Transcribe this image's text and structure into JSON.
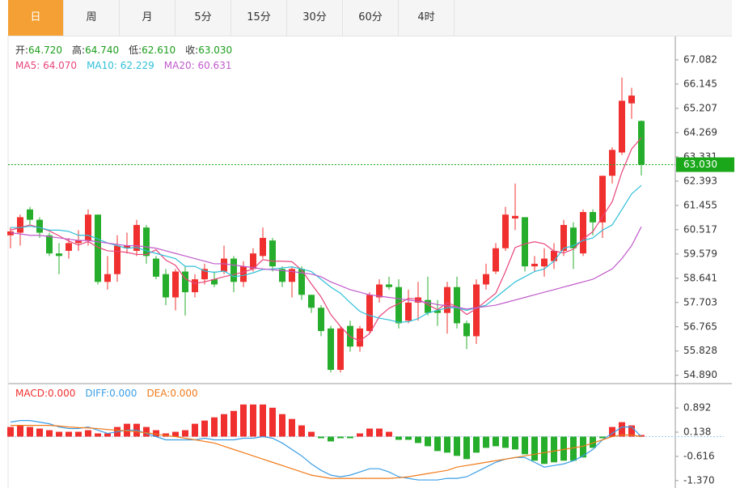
{
  "tabs": [
    "日",
    "周",
    "月",
    "5分",
    "15分",
    "30分",
    "60分",
    "4时"
  ],
  "active_tab": 0,
  "chart_data": [
    {
      "type": "candlestick",
      "ohlc_legend": [
        {
          "label": "开:",
          "value": "64.720"
        },
        {
          "label": "高:",
          "value": "64.740"
        },
        {
          "label": "低:",
          "value": "62.610"
        },
        {
          "label": "收:",
          "value": "63.030"
        }
      ],
      "legend_value_color": "#1a9d1a",
      "up_color": "#f0302f",
      "down_color": "#27ad2c",
      "open": [
        60.3,
        60.4,
        61.3,
        60.9,
        60.3,
        59.6,
        59.7,
        60.0,
        60.1,
        61.1,
        58.5,
        58.8,
        59.8,
        59.7,
        60.6,
        59.4,
        58.8,
        57.9,
        58.9,
        58.1,
        58.6,
        58.6,
        58.9,
        59.4,
        58.5,
        59.0,
        59.5,
        60.1,
        59.0,
        58.5,
        59.0,
        58.0,
        57.5,
        56.7,
        55.1,
        56.8,
        56.0,
        56.6,
        57.9,
        58.4,
        58.3,
        57.0,
        57.7,
        57.8,
        57.4,
        57.3,
        58.3,
        56.9,
        56.4,
        58.4,
        58.9,
        59.8,
        60.95,
        61.0,
        59.1,
        59.1,
        59.3,
        59.7,
        60.6,
        59.6,
        61.2,
        60.8,
        62.6,
        63.5,
        65.4,
        64.72
      ],
      "high": [
        60.6,
        61.1,
        61.4,
        61.0,
        60.4,
        60.0,
        60.2,
        60.5,
        61.3,
        61.1,
        59.5,
        60.3,
        60.4,
        60.9,
        60.7,
        59.5,
        59.0,
        59.0,
        59.1,
        58.8,
        59.2,
        58.9,
        59.9,
        59.5,
        59.3,
        59.8,
        60.6,
        60.2,
        59.1,
        59.1,
        59.1,
        58.0,
        57.6,
        56.8,
        56.8,
        57.0,
        56.8,
        58.1,
        58.6,
        58.7,
        58.6,
        58.2,
        58.5,
        58.7,
        57.8,
        58.5,
        58.7,
        57.0,
        58.6,
        59.2,
        60.0,
        61.4,
        62.3,
        61.0,
        59.5,
        59.8,
        60.0,
        60.9,
        60.8,
        61.3,
        61.3,
        62.6,
        63.7,
        66.4,
        66.0,
        64.74
      ],
      "low": [
        59.8,
        59.9,
        60.7,
        60.2,
        59.5,
        58.8,
        59.4,
        59.7,
        59.9,
        58.4,
        58.2,
        58.5,
        59.6,
        59.5,
        59.2,
        58.6,
        57.6,
        57.4,
        57.2,
        57.9,
        58.4,
        58.3,
        58.8,
        58.1,
        58.3,
        58.9,
        59.4,
        58.9,
        58.3,
        57.9,
        57.8,
        57.3,
        56.4,
        55.0,
        55.0,
        55.8,
        55.8,
        56.5,
        57.7,
        58.2,
        56.7,
        56.9,
        57.0,
        57.2,
        56.8,
        56.5,
        56.7,
        55.9,
        56.1,
        58.2,
        58.8,
        59.7,
        60.5,
        58.9,
        58.9,
        58.7,
        59.0,
        59.5,
        59.0,
        59.5,
        60.3,
        60.2,
        62.3,
        63.4,
        64.8,
        62.61
      ],
      "close": [
        60.45,
        61.0,
        60.9,
        60.4,
        59.6,
        59.5,
        60.0,
        60.1,
        61.1,
        58.5,
        58.8,
        59.9,
        59.9,
        60.7,
        59.5,
        58.7,
        57.9,
        58.9,
        58.1,
        58.6,
        59.0,
        58.4,
        59.4,
        58.5,
        59.1,
        59.6,
        60.2,
        59.1,
        58.5,
        59.0,
        58.0,
        57.5,
        56.6,
        55.1,
        56.7,
        56.0,
        56.7,
        58.0,
        58.4,
        58.3,
        56.9,
        57.7,
        57.9,
        57.3,
        57.3,
        58.3,
        56.9,
        56.4,
        58.4,
        58.8,
        59.8,
        61.1,
        61.05,
        59.1,
        59.2,
        59.4,
        59.7,
        60.7,
        59.8,
        61.2,
        60.8,
        62.6,
        63.6,
        65.5,
        65.7,
        63.03
      ],
      "ma": [
        {
          "name": "MA5: ",
          "value_label": "64.070",
          "color": "#e8457a",
          "values": [
            60.5,
            60.6,
            60.7,
            60.6,
            60.47,
            60.28,
            60.08,
            59.92,
            60.06,
            59.84,
            59.7,
            59.68,
            59.64,
            59.56,
            59.56,
            59.74,
            59.34,
            59.14,
            58.62,
            58.44,
            58.5,
            58.6,
            58.7,
            58.78,
            58.88,
            59.0,
            59.36,
            59.3,
            59.3,
            59.28,
            58.96,
            58.42,
            57.92,
            57.24,
            56.78,
            56.38,
            56.22,
            56.5,
            57.16,
            57.48,
            57.66,
            57.86,
            57.84,
            57.62,
            57.42,
            57.7,
            57.54,
            57.24,
            57.46,
            57.76,
            58.06,
            58.9,
            59.83,
            59.97,
            60.05,
            59.97,
            59.69,
            59.62,
            59.76,
            60.16,
            60.44,
            61.02,
            61.6,
            62.74,
            63.64,
            64.07
          ]
        },
        {
          "name": "MA10: ",
          "value_label": "62.229",
          "color": "#2fbfd8",
          "values": [
            60.6,
            60.6,
            60.65,
            60.6,
            60.5,
            60.5,
            60.45,
            60.3,
            60.3,
            60.16,
            60.0,
            59.9,
            59.8,
            59.83,
            59.7,
            59.6,
            59.5,
            59.4,
            59.1,
            59.1,
            58.92,
            58.87,
            58.92,
            58.7,
            58.75,
            58.85,
            58.98,
            59.0,
            59.04,
            59.08,
            59.0,
            58.9,
            58.6,
            58.3,
            58.06,
            57.7,
            57.36,
            57.2,
            57.1,
            57.03,
            56.94,
            56.96,
            57.08,
            57.3,
            57.4,
            57.5,
            57.5,
            57.4,
            57.5,
            57.6,
            57.9,
            58.2,
            58.5,
            58.7,
            58.9,
            59.0,
            59.3,
            59.8,
            59.9,
            60.1,
            60.2,
            60.5,
            60.7,
            61.3,
            61.9,
            62.229
          ]
        },
        {
          "name": "MA20: ",
          "value_label": "60.631",
          "color": "#c05acb",
          "values": [
            60.4,
            60.35,
            60.3,
            60.3,
            60.25,
            60.2,
            60.15,
            60.1,
            60.1,
            60.05,
            60.0,
            59.95,
            59.9,
            59.9,
            59.85,
            59.8,
            59.7,
            59.6,
            59.5,
            59.4,
            59.3,
            59.2,
            59.2,
            59.15,
            59.1,
            59.05,
            59.0,
            58.97,
            58.94,
            58.9,
            58.85,
            58.8,
            58.7,
            58.5,
            58.35,
            58.2,
            58.1,
            58.0,
            57.95,
            57.9,
            57.85,
            57.8,
            57.75,
            57.7,
            57.62,
            57.58,
            57.52,
            57.45,
            57.5,
            57.55,
            57.6,
            57.7,
            57.8,
            57.9,
            58.0,
            58.1,
            58.2,
            58.3,
            58.4,
            58.5,
            58.6,
            58.8,
            59.0,
            59.4,
            59.9,
            60.631
          ]
        }
      ],
      "last_price": {
        "value": 63.03,
        "label": "63.030"
      },
      "last_price_color": "#1aa81a",
      "ylim": [
        54.6,
        67.83
      ],
      "yticks": [
        {
          "value": 54.89,
          "label": "54.890"
        },
        55.828,
        56.765,
        57.703,
        58.641,
        59.579,
        60.517,
        61.455,
        62.393,
        63.331,
        64.269,
        65.207,
        66.145,
        67.082
      ]
    },
    {
      "type": "macd",
      "legend": [
        {
          "label": "MACD:",
          "value": "0.000",
          "color": "#f0302f"
        },
        {
          "label": "DIFF:",
          "value": "0.000",
          "color": "#3a9ee6"
        },
        {
          "label": "DEA:",
          "value": "0.000",
          "color": "#f07a1a"
        }
      ],
      "up_color": "#f0302f",
      "down_color": "#27ad2c",
      "macd": [
        0.3,
        0.35,
        0.3,
        0.25,
        0.2,
        0.15,
        0.15,
        0.15,
        0.2,
        0.1,
        0.1,
        0.3,
        0.4,
        0.4,
        0.3,
        0.2,
        0.1,
        0.15,
        0.2,
        0.4,
        0.5,
        0.6,
        0.7,
        0.8,
        1.0,
        1.0,
        1.0,
        0.9,
        0.7,
        0.55,
        0.35,
        0.15,
        -0.05,
        -0.15,
        -0.05,
        -0.05,
        0.1,
        0.25,
        0.25,
        0.15,
        -0.1,
        -0.1,
        -0.2,
        -0.3,
        -0.45,
        -0.5,
        -0.6,
        -0.7,
        -0.5,
        -0.35,
        -0.3,
        -0.35,
        -0.4,
        -0.55,
        -0.75,
        -0.85,
        -0.8,
        -0.75,
        -0.75,
        -0.65,
        -0.35,
        -0.05,
        0.3,
        0.45,
        0.35,
        0.05
      ],
      "diff": {
        "color": "#3a9ee6",
        "values": [
          0.45,
          0.5,
          0.5,
          0.45,
          0.4,
          0.3,
          0.25,
          0.25,
          0.3,
          0.2,
          0.1,
          0.15,
          0.2,
          0.2,
          0.1,
          0.0,
          -0.1,
          -0.1,
          -0.1,
          -0.1,
          -0.05,
          -0.1,
          -0.1,
          -0.1,
          -0.05,
          -0.05,
          0.0,
          -0.05,
          -0.2,
          -0.4,
          -0.6,
          -0.85,
          -1.05,
          -1.2,
          -1.25,
          -1.2,
          -1.1,
          -1.0,
          -1.0,
          -1.1,
          -1.25,
          -1.3,
          -1.35,
          -1.35,
          -1.35,
          -1.3,
          -1.3,
          -1.25,
          -1.1,
          -0.95,
          -0.8,
          -0.7,
          -0.65,
          -0.65,
          -0.8,
          -0.95,
          -0.9,
          -0.85,
          -0.75,
          -0.6,
          -0.4,
          -0.1,
          0.1,
          0.3,
          0.3,
          0.0
        ]
      },
      "dea": {
        "color": "#f07a1a",
        "values": [
          0.35,
          0.35,
          0.35,
          0.35,
          0.35,
          0.33,
          0.3,
          0.28,
          0.27,
          0.25,
          0.22,
          0.2,
          0.18,
          0.15,
          0.12,
          0.08,
          0.03,
          0.0,
          -0.05,
          -0.1,
          -0.15,
          -0.2,
          -0.3,
          -0.4,
          -0.5,
          -0.6,
          -0.7,
          -0.8,
          -0.9,
          -1.0,
          -1.1,
          -1.2,
          -1.25,
          -1.3,
          -1.3,
          -1.3,
          -1.3,
          -1.3,
          -1.3,
          -1.3,
          -1.28,
          -1.25,
          -1.2,
          -1.15,
          -1.1,
          -1.05,
          -0.95,
          -0.9,
          -0.85,
          -0.8,
          -0.75,
          -0.7,
          -0.65,
          -0.6,
          -0.55,
          -0.5,
          -0.45,
          -0.4,
          -0.35,
          -0.3,
          -0.2,
          -0.1,
          0.0,
          0.05,
          0.05,
          0.0
        ]
      },
      "ylim": [
        -1.6,
        1.6
      ],
      "yticks": [
        {
          "value": -1.37,
          "label": "-1.370"
        },
        -0.616,
        0.138,
        0.892
      ]
    }
  ]
}
